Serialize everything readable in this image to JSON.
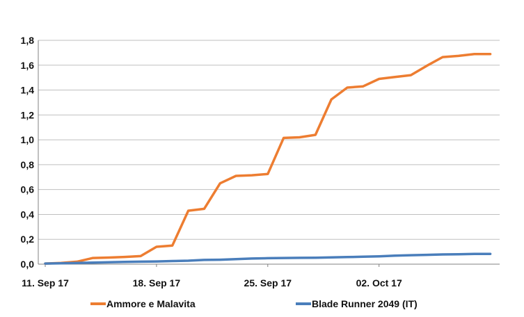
{
  "chart_data": {
    "type": "line",
    "title": "",
    "xlabel": "",
    "ylabel": "",
    "x": [
      "2017-09-11",
      "2017-09-12",
      "2017-09-13",
      "2017-09-14",
      "2017-09-15",
      "2017-09-16",
      "2017-09-17",
      "2017-09-18",
      "2017-09-19",
      "2017-09-20",
      "2017-09-21",
      "2017-09-22",
      "2017-09-23",
      "2017-09-24",
      "2017-09-25",
      "2017-09-26",
      "2017-09-27",
      "2017-09-28",
      "2017-09-29",
      "2017-09-30",
      "2017-10-01",
      "2017-10-02",
      "2017-10-03",
      "2017-10-04",
      "2017-10-05",
      "2017-10-06",
      "2017-10-07",
      "2017-10-08",
      "2017-10-09"
    ],
    "xlim": [
      "2017-09-11",
      "2017-10-09"
    ],
    "x_ticks": [
      {
        "date": "2017-09-11",
        "label": "11. Sep 17"
      },
      {
        "date": "2017-09-18",
        "label": "18. Sep 17"
      },
      {
        "date": "2017-09-25",
        "label": "25. Sep 17"
      },
      {
        "date": "2017-10-02",
        "label": "02. Oct 17"
      }
    ],
    "ylim": [
      0,
      1.8
    ],
    "y_ticks": [
      {
        "value": 0.0,
        "label": "0,0"
      },
      {
        "value": 0.2,
        "label": "0,2"
      },
      {
        "value": 0.4,
        "label": "0,4"
      },
      {
        "value": 0.6,
        "label": "0,6"
      },
      {
        "value": 0.8,
        "label": "0,8"
      },
      {
        "value": 1.0,
        "label": "1,0"
      },
      {
        "value": 1.2,
        "label": "1,2"
      },
      {
        "value": 1.4,
        "label": "1,4"
      },
      {
        "value": 1.6,
        "label": "1,6"
      },
      {
        "value": 1.8,
        "label": "1,8"
      }
    ],
    "grid": true,
    "legend_position": "bottom",
    "series": [
      {
        "name": "Ammore e Malavita",
        "color": "#ED7D31",
        "values": [
          0.005,
          0.01,
          0.02,
          0.05,
          0.053,
          0.058,
          0.065,
          0.14,
          0.15,
          0.43,
          0.445,
          0.65,
          0.71,
          0.715,
          0.725,
          1.015,
          1.02,
          1.04,
          1.325,
          1.42,
          1.43,
          1.49,
          1.505,
          1.52,
          1.595,
          1.665,
          1.675,
          1.69,
          1.69
        ]
      },
      {
        "name": "Blade Runner 2049 (IT)",
        "color": "#4A7EBB",
        "values": [
          0.005,
          0.007,
          0.01,
          0.013,
          0.015,
          0.018,
          0.02,
          0.022,
          0.025,
          0.028,
          0.034,
          0.036,
          0.04,
          0.045,
          0.048,
          0.05,
          0.051,
          0.052,
          0.055,
          0.057,
          0.06,
          0.063,
          0.068,
          0.072,
          0.075,
          0.078,
          0.08,
          0.082,
          0.083
        ]
      }
    ]
  }
}
